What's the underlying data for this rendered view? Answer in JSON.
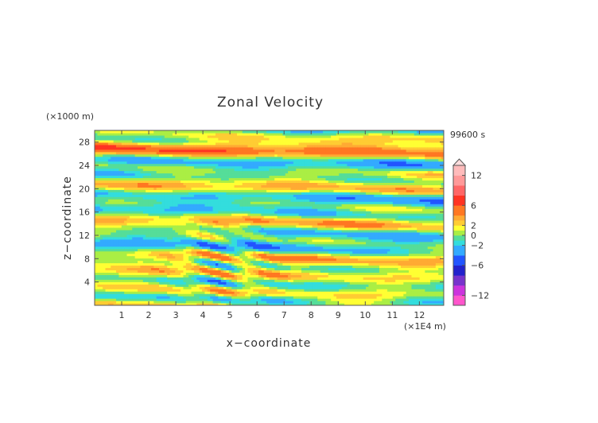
{
  "chart_data": {
    "type": "heatmap",
    "title": "Zonal Velocity",
    "xlabel": "x−coordinate",
    "ylabel": "z−coordinate",
    "x_units": "(×1E4 m)",
    "y_units": "(×1000 m)",
    "time_label": "99600 s",
    "xlim": [
      0,
      12.9
    ],
    "ylim": [
      0,
      30
    ],
    "x_ticks": [
      "1",
      "2",
      "3",
      "4",
      "5",
      "6",
      "7",
      "8",
      "9",
      "10",
      "11",
      "12"
    ],
    "y_ticks": [
      "4",
      "8",
      "12",
      "16",
      "20",
      "24",
      "28"
    ],
    "colorbar": {
      "range": [
        -14,
        14
      ],
      "tick_labels": [
        "12",
        "6",
        "2",
        "0",
        "−2",
        "−6",
        "−12"
      ],
      "tick_values": [
        12,
        6,
        2,
        0,
        -2,
        -6,
        -12
      ],
      "levels": [
        {
          "from": -14,
          "to": -12,
          "color": "#ff55cc"
        },
        {
          "from": -12,
          "to": -10,
          "color": "#cc33dd"
        },
        {
          "from": -10,
          "to": -8,
          "color": "#7733cc"
        },
        {
          "from": -8,
          "to": -6,
          "color": "#2222cc"
        },
        {
          "from": -6,
          "to": -4,
          "color": "#2255ff"
        },
        {
          "from": -4,
          "to": -2,
          "color": "#33aaff"
        },
        {
          "from": -2,
          "to": -1,
          "color": "#33dddd"
        },
        {
          "from": -1,
          "to": 0,
          "color": "#55dd99"
        },
        {
          "from": 0,
          "to": 1,
          "color": "#aaee44"
        },
        {
          "from": 1,
          "to": 2,
          "color": "#ffff33"
        },
        {
          "from": 2,
          "to": 3,
          "color": "#ffcc33"
        },
        {
          "from": 3,
          "to": 4,
          "color": "#ffaa33"
        },
        {
          "from": 4,
          "to": 6,
          "color": "#ff7722"
        },
        {
          "from": 6,
          "to": 8,
          "color": "#ff3322"
        },
        {
          "from": 8,
          "to": 10,
          "color": "#ff6666"
        },
        {
          "from": 10,
          "to": 12,
          "color": "#ff9999"
        },
        {
          "from": 12,
          "to": 14,
          "color": "#ffbbbb"
        }
      ]
    }
  }
}
